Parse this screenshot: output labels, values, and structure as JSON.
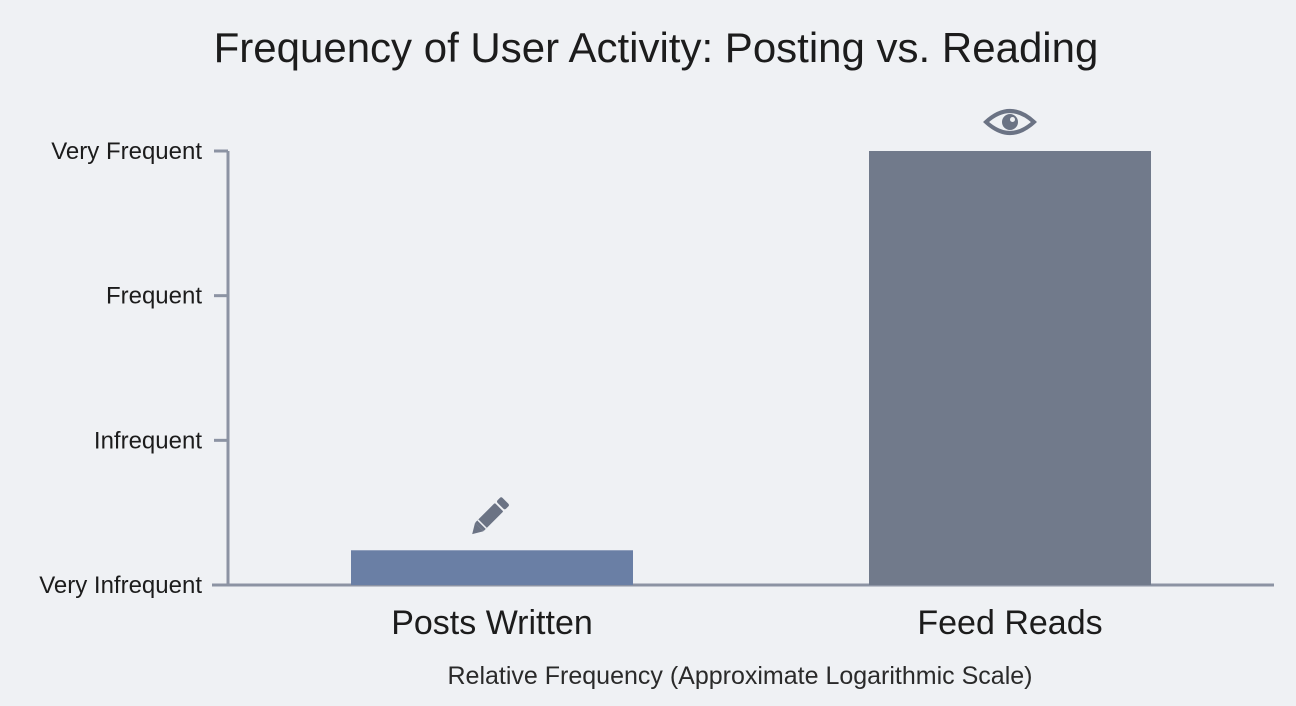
{
  "chart_data": {
    "type": "bar",
    "title": "Frequency of User Activity: Posting vs. Reading",
    "xlabel": "Relative Frequency (Approximate Logarithmic Scale)",
    "ylabel": "",
    "y_ticks": [
      "Very Infrequent",
      "Infrequent",
      "Frequent",
      "Very Frequent"
    ],
    "ylim": [
      0,
      3
    ],
    "categories": [
      "Posts Written",
      "Feed Reads"
    ],
    "values": [
      0.24,
      3.0
    ],
    "bar_colors": [
      "#6a7fa5",
      "#717a8b"
    ],
    "bar_icons": [
      "pencil-icon",
      "eye-icon"
    ],
    "icon_color": "#6b7384",
    "axis_color": "#8c93a3",
    "grid": false,
    "legend": "none"
  }
}
